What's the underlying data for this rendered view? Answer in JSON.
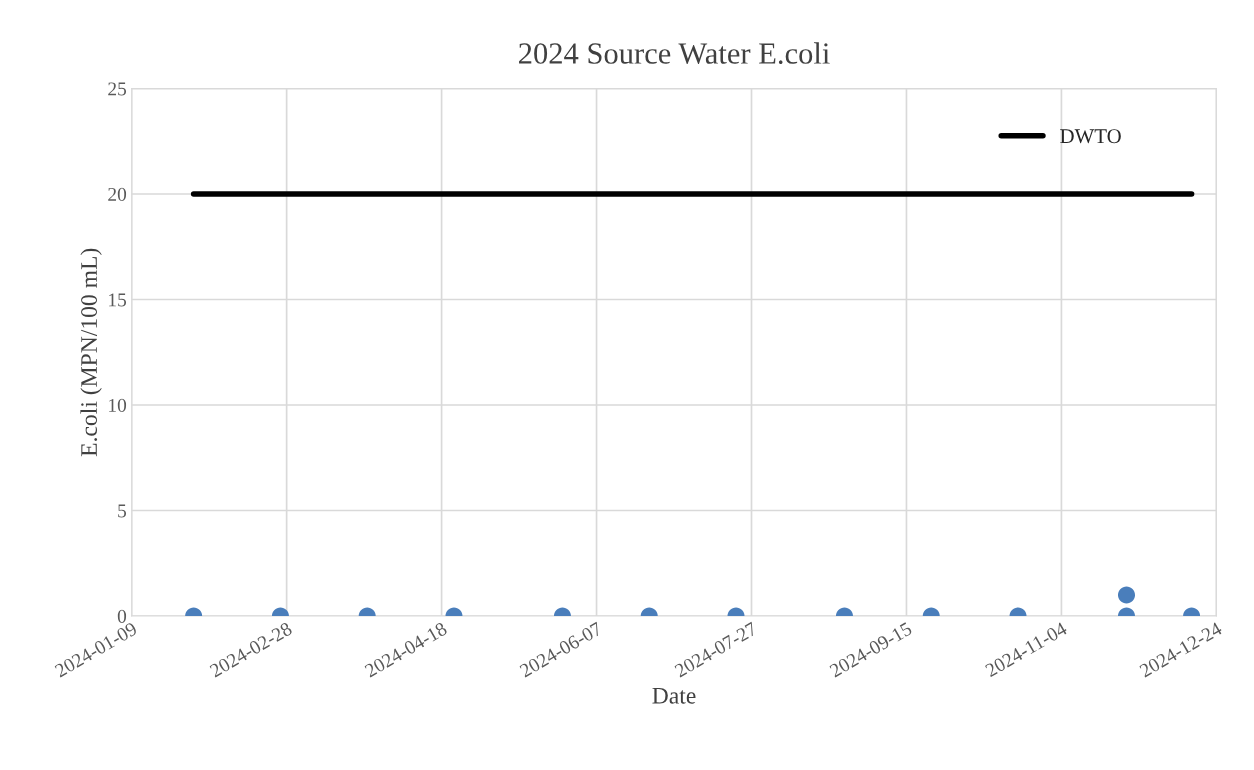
{
  "chart_data": {
    "type": "scatter",
    "title": "2024 Source Water E.coli",
    "xlabel": "Date",
    "ylabel": "E.coli (MPN/100 mL)",
    "series": [
      {
        "marker": "circle",
        "color": "#4a7ebb",
        "x": [
          "2024-01-29",
          "2024-02-26",
          "2024-03-25",
          "2024-04-22",
          "2024-05-27",
          "2024-06-24",
          "2024-07-22",
          "2024-08-26",
          "2024-09-23",
          "2024-10-21",
          "2024-11-25",
          "2024-11-25",
          "2024-12-16"
        ],
        "values": [
          0,
          0,
          0,
          0,
          0,
          0,
          0,
          0,
          0,
          0,
          1,
          0,
          0
        ]
      },
      {
        "type": "line",
        "name": "DWTO",
        "color": "#000000",
        "x": [
          "2024-01-29",
          "2024-12-16"
        ],
        "values": [
          20,
          20
        ]
      }
    ],
    "xlim": [
      "2024-01-09",
      "2024-12-24"
    ],
    "xticks": [
      "2024-01-09",
      "2024-02-28",
      "2024-04-18",
      "2024-06-07",
      "2024-07-27",
      "2024-09-15",
      "2024-11-04",
      "2024-12-24"
    ],
    "ylim": [
      0,
      25
    ],
    "yticks": [
      0,
      5,
      10,
      15,
      20,
      25
    ],
    "grid": true,
    "legend": "top right"
  }
}
